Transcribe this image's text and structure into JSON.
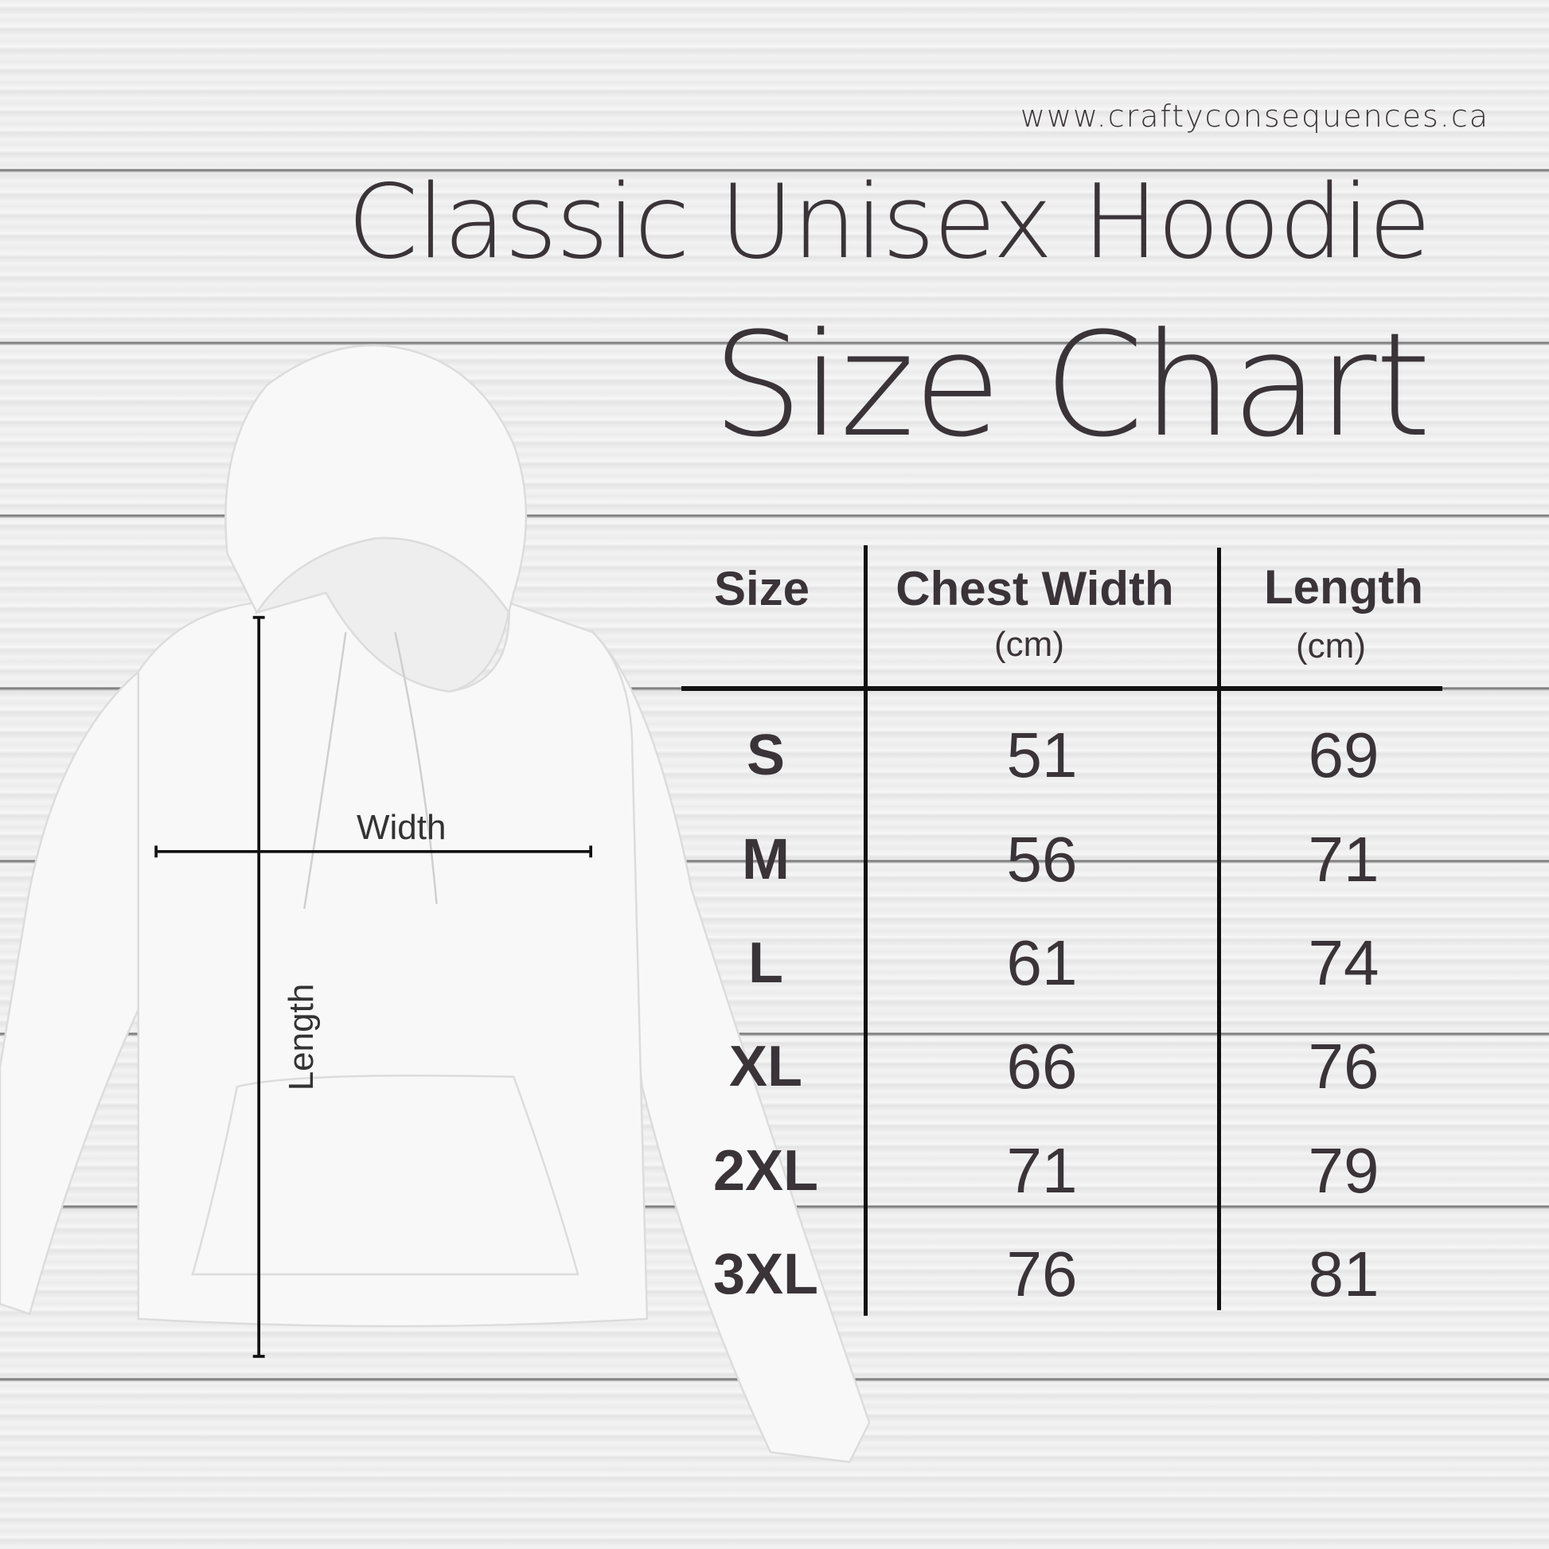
{
  "header": {
    "url": "www.craftyconsequences.ca",
    "title": "Classic Unisex Hoodie",
    "subtitle": "Size Chart"
  },
  "diagram": {
    "width_label": "Width",
    "length_label": "Length"
  },
  "table": {
    "columns": [
      {
        "label": "Size",
        "unit": ""
      },
      {
        "label": "Chest Width",
        "unit": "(cm)"
      },
      {
        "label": "Length",
        "unit": "(cm)"
      }
    ],
    "rows": [
      {
        "size": "S",
        "chest": "51",
        "length": "69"
      },
      {
        "size": "M",
        "chest": "56",
        "length": "71"
      },
      {
        "size": "L",
        "chest": "61",
        "length": "74"
      },
      {
        "size": "XL",
        "chest": "66",
        "length": "76"
      },
      {
        "size": "2XL",
        "chest": "71",
        "length": "79"
      },
      {
        "size": "3XL",
        "chest": "76",
        "length": "81"
      }
    ]
  },
  "colors": {
    "text": "#3a3438",
    "lines": "#111111",
    "background": "#efefef"
  }
}
